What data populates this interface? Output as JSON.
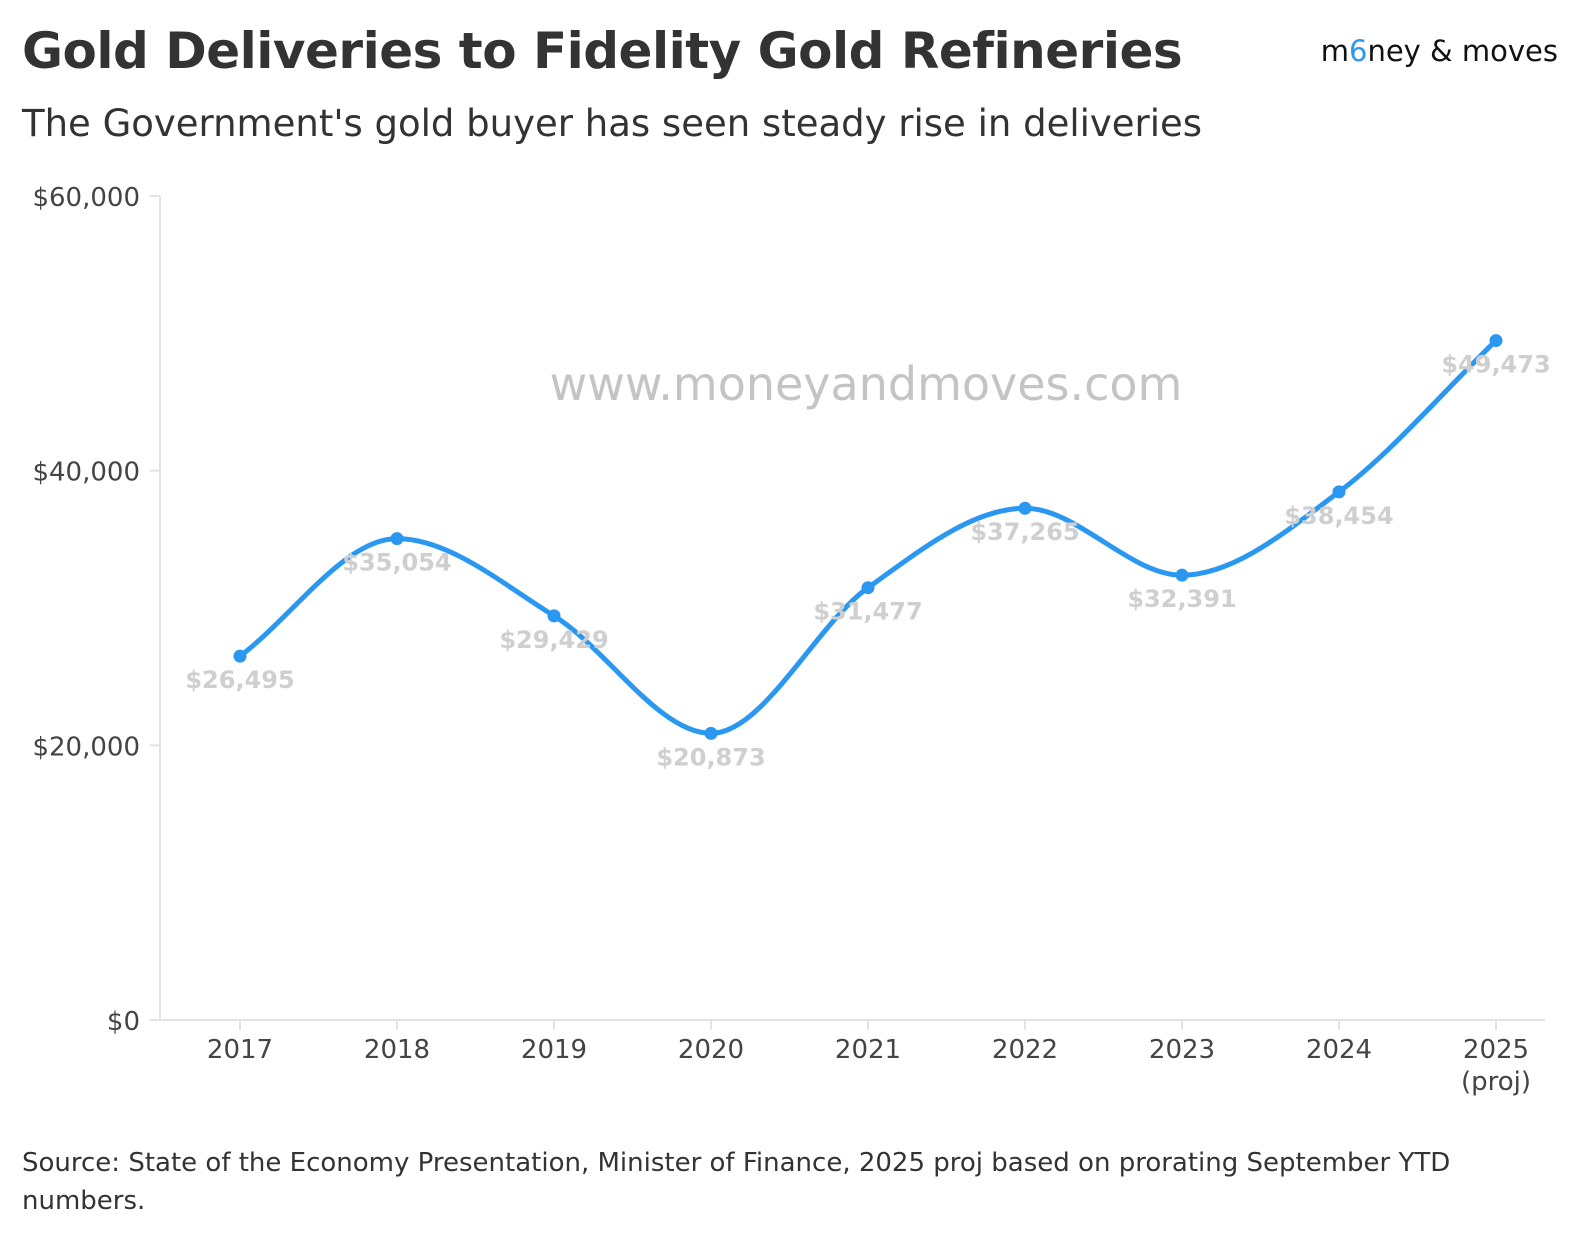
{
  "header": {
    "title": "Gold Deliveries to Fidelity Gold Refineries",
    "subtitle": "The Government's gold buyer has seen steady rise in deliveries",
    "brand_left": "m",
    "brand_mid": "6",
    "brand_right": "ney & moves"
  },
  "watermark": "www.moneyandmoves.com",
  "footnote": "Source: State of the Economy Presentation, Minister of Finance, 2025 proj based on prorating September YTD numbers.",
  "colors": {
    "line": "#2a97f0",
    "axis": "#e3e3e3",
    "data_label": "#cfcfcf"
  },
  "chart_data": {
    "type": "line",
    "title": "Gold Deliveries to Fidelity Gold Refineries",
    "subtitle": "The Government's gold buyer has seen steady rise in deliveries",
    "categories": [
      "2017",
      "2018",
      "2019",
      "2020",
      "2021",
      "2022",
      "2023",
      "2024",
      "2025\n(proj)"
    ],
    "series": [
      {
        "values": [
          26495,
          35054,
          29429,
          20873,
          31477,
          37265,
          32391,
          38454,
          49473
        ],
        "labels": [
          "$26,495",
          "$35,054",
          "$29,429",
          "$20,873",
          "$31,477",
          "$37,265",
          "$32,391",
          "$38,454",
          "$49,473"
        ]
      }
    ],
    "yticks": [
      0,
      20000,
      40000,
      60000
    ],
    "ytick_labels": [
      "$0",
      "$20,000",
      "$40,000",
      "$60,000"
    ],
    "ylim": [
      0,
      60000
    ],
    "xlabel": "",
    "ylabel": "",
    "grid": false,
    "legend": "none",
    "curve": "smooth"
  }
}
